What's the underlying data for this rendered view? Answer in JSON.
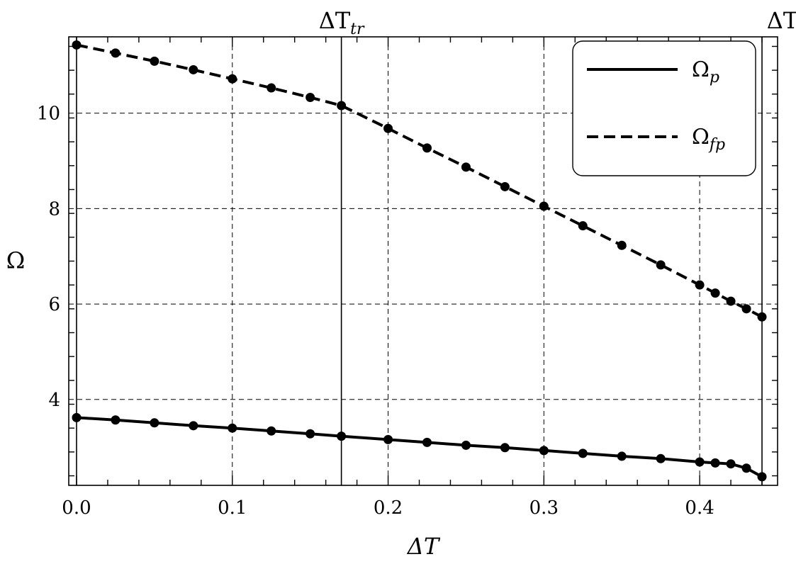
{
  "chart_data": {
    "type": "line",
    "xlabel": "ΔT",
    "ylabel": "Ω",
    "xlim": [
      -0.005,
      0.45
    ],
    "ylim": [
      2.2,
      11.6
    ],
    "xticks": [
      0.0,
      0.1,
      0.2,
      0.3,
      0.4
    ],
    "xtick_labels": [
      "0.0",
      "0.1",
      "0.2",
      "0.3",
      "0.4"
    ],
    "yticks": [
      4,
      6,
      8,
      10
    ],
    "ytick_labels": [
      "4",
      "6",
      "8",
      "10"
    ],
    "grid": true,
    "legend_position": "top-right",
    "vlines": [
      {
        "x": 0.0,
        "label_base": "",
        "label_sub": ""
      },
      {
        "x": 0.17,
        "label_base": "ΔT",
        "label_sub": "tr"
      },
      {
        "x": 0.44,
        "label_base": "ΔT",
        "label_sub": "p"
      }
    ],
    "series": [
      {
        "name_base": "Ω",
        "name_sub": "p",
        "style": "solid",
        "x": [
          0.0,
          0.025,
          0.05,
          0.075,
          0.1,
          0.125,
          0.15,
          0.17,
          0.2,
          0.225,
          0.25,
          0.275,
          0.3,
          0.325,
          0.35,
          0.375,
          0.4,
          0.41,
          0.42,
          0.43,
          0.44
        ],
        "y": [
          3.62,
          3.57,
          3.51,
          3.45,
          3.4,
          3.34,
          3.28,
          3.23,
          3.16,
          3.1,
          3.04,
          2.99,
          2.93,
          2.87,
          2.81,
          2.76,
          2.69,
          2.67,
          2.65,
          2.56,
          2.38
        ]
      },
      {
        "name_base": "Ω",
        "name_sub": "fp",
        "style": "dashed",
        "x": [
          0.0,
          0.025,
          0.05,
          0.075,
          0.1,
          0.125,
          0.15,
          0.17,
          0.2,
          0.225,
          0.25,
          0.275,
          0.3,
          0.325,
          0.35,
          0.375,
          0.4,
          0.41,
          0.42,
          0.43,
          0.44
        ],
        "y": [
          11.43,
          11.26,
          11.09,
          10.91,
          10.72,
          10.53,
          10.33,
          10.16,
          9.68,
          9.27,
          8.87,
          8.46,
          8.05,
          7.64,
          7.23,
          6.82,
          6.4,
          6.23,
          6.06,
          5.9,
          5.73
        ]
      }
    ]
  }
}
